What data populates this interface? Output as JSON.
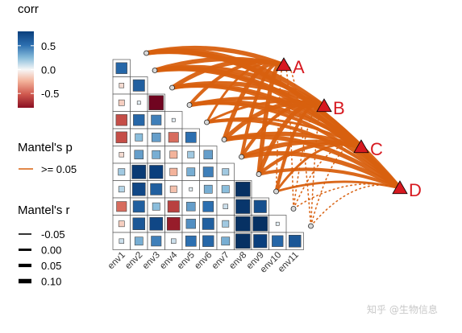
{
  "colors": {
    "link": "#d8600f",
    "target_marker": "#d71920",
    "corr_negative": "#8b0f22",
    "corr_positive": "#0a3f7d",
    "corr_neutral": "#f7f7f7",
    "grid": "#555555"
  },
  "legends": {
    "corr": {
      "title": "corr",
      "ticks": [
        {
          "value": 0.5,
          "label": "0.5"
        },
        {
          "value": 0.0,
          "label": "0.0"
        },
        {
          "value": -0.5,
          "label": "-0.5"
        }
      ],
      "range": [
        -0.8,
        0.8
      ]
    },
    "mantel_p": {
      "title": "Mantel's p",
      "items": [
        {
          "label": ">= 0.05"
        }
      ]
    },
    "mantel_r": {
      "title": "Mantel's r",
      "items": [
        {
          "label": "-0.05",
          "value": -0.05
        },
        {
          "label": "0.00",
          "value": 0.0
        },
        {
          "label": "0.05",
          "value": 0.05
        },
        {
          "label": "0.10",
          "value": 0.1
        }
      ]
    }
  },
  "chart_data": {
    "type": "heatmap",
    "variables": [
      "env1",
      "env2",
      "env3",
      "env4",
      "env5",
      "env6",
      "env7",
      "env8",
      "env9",
      "env10",
      "env11"
    ],
    "correlation_matrix_lower": [
      {
        "row": "env1",
        "values": [
          0.55
        ]
      },
      {
        "row": "env2",
        "values": [
          -0.1,
          0.6
        ]
      },
      {
        "row": "env3",
        "values": [
          -0.15,
          0.05,
          -0.95
        ]
      },
      {
        "row": "env4",
        "values": [
          -0.55,
          0.55,
          0.45,
          0.05
        ]
      },
      {
        "row": "env5",
        "values": [
          -0.55,
          0.25,
          0.35,
          -0.45,
          0.5
        ]
      },
      {
        "row": "env6",
        "values": [
          -0.1,
          0.35,
          0.3,
          -0.25,
          0.2,
          0.35
        ]
      },
      {
        "row": "env7",
        "values": [
          0.2,
          0.85,
          0.8,
          -0.25,
          0.3,
          0.45,
          0.2
        ]
      },
      {
        "row": "env8",
        "values": [
          0.15,
          0.75,
          0.6,
          -0.2,
          0.05,
          0.3,
          0.25,
          0.95
        ]
      },
      {
        "row": "env9",
        "values": [
          -0.45,
          0.6,
          0.25,
          -0.6,
          0.35,
          0.5,
          0.1,
          0.9,
          0.7
        ]
      },
      {
        "row": "env10",
        "values": [
          -0.15,
          0.65,
          0.75,
          -0.75,
          0.4,
          0.6,
          0.2,
          0.95,
          0.95,
          0.05
        ]
      },
      {
        "row": "env11",
        "values": [
          0.1,
          0.3,
          0.45,
          0.1,
          0.5,
          0.55,
          0.3,
          0.95,
          0.8,
          0.55,
          0.65
        ]
      }
    ],
    "targets": [
      "A",
      "B",
      "C",
      "D"
    ],
    "mantel_links": [
      {
        "from": "A",
        "to": "env1",
        "r": 0.1,
        "p": ">= 0.05"
      },
      {
        "from": "A",
        "to": "env2",
        "r": 0.1,
        "p": ">= 0.05"
      },
      {
        "from": "A",
        "to": "env3",
        "r": 0.1,
        "p": ">= 0.05"
      },
      {
        "from": "A",
        "to": "env4",
        "r": 0.05,
        "p": ">= 0.05"
      },
      {
        "from": "A",
        "to": "env5",
        "r": 0.0,
        "p": ">= 0.05"
      },
      {
        "from": "A",
        "to": "env6",
        "r": 0.1,
        "p": ">= 0.05"
      },
      {
        "from": "A",
        "to": "env7",
        "r": 0.05,
        "p": ">= 0.05"
      },
      {
        "from": "A",
        "to": "env8",
        "r": 0.1,
        "p": ">= 0.05"
      },
      {
        "from": "A",
        "to": "env9",
        "r": -0.05,
        "p": ">= 0.05"
      },
      {
        "from": "A",
        "to": "env10",
        "r": -0.05,
        "p": ">= 0.05"
      },
      {
        "from": "A",
        "to": "env11",
        "r": -0.05,
        "p": ">= 0.05"
      },
      {
        "from": "B",
        "to": "env1",
        "r": 0.1,
        "p": ">= 0.05"
      },
      {
        "from": "B",
        "to": "env2",
        "r": 0.1,
        "p": ">= 0.05"
      },
      {
        "from": "B",
        "to": "env3",
        "r": 0.1,
        "p": ">= 0.05"
      },
      {
        "from": "B",
        "to": "env4",
        "r": 0.05,
        "p": ">= 0.05"
      },
      {
        "from": "B",
        "to": "env5",
        "r": 0.0,
        "p": ">= 0.05"
      },
      {
        "from": "B",
        "to": "env6",
        "r": 0.1,
        "p": ">= 0.05"
      },
      {
        "from": "B",
        "to": "env7",
        "r": 0.05,
        "p": ">= 0.05"
      },
      {
        "from": "B",
        "to": "env8",
        "r": 0.1,
        "p": ">= 0.05"
      },
      {
        "from": "B",
        "to": "env9",
        "r": 0.05,
        "p": ">= 0.05"
      },
      {
        "from": "B",
        "to": "env10",
        "r": -0.05,
        "p": ">= 0.05"
      },
      {
        "from": "B",
        "to": "env11",
        "r": -0.05,
        "p": ">= 0.05"
      },
      {
        "from": "C",
        "to": "env1",
        "r": 0.1,
        "p": ">= 0.05"
      },
      {
        "from": "C",
        "to": "env2",
        "r": 0.1,
        "p": ">= 0.05"
      },
      {
        "from": "C",
        "to": "env3",
        "r": 0.05,
        "p": ">= 0.05"
      },
      {
        "from": "C",
        "to": "env4",
        "r": 0.1,
        "p": ">= 0.05"
      },
      {
        "from": "C",
        "to": "env5",
        "r": 0.0,
        "p": ">= 0.05"
      },
      {
        "from": "C",
        "to": "env6",
        "r": 0.1,
        "p": ">= 0.05"
      },
      {
        "from": "C",
        "to": "env7",
        "r": 0.1,
        "p": ">= 0.05"
      },
      {
        "from": "C",
        "to": "env8",
        "r": 0.05,
        "p": ">= 0.05"
      },
      {
        "from": "C",
        "to": "env9",
        "r": 0.0,
        "p": ">= 0.05"
      },
      {
        "from": "C",
        "to": "env10",
        "r": -0.05,
        "p": ">= 0.05"
      },
      {
        "from": "C",
        "to": "env11",
        "r": -0.05,
        "p": ">= 0.05"
      },
      {
        "from": "D",
        "to": "env1",
        "r": 0.1,
        "p": ">= 0.05"
      },
      {
        "from": "D",
        "to": "env2",
        "r": 0.1,
        "p": ">= 0.05"
      },
      {
        "from": "D",
        "to": "env3",
        "r": 0.05,
        "p": ">= 0.05"
      },
      {
        "from": "D",
        "to": "env4",
        "r": 0.05,
        "p": ">= 0.05"
      },
      {
        "from": "D",
        "to": "env5",
        "r": 0.05,
        "p": ">= 0.05"
      },
      {
        "from": "D",
        "to": "env6",
        "r": 0.1,
        "p": ">= 0.05"
      },
      {
        "from": "D",
        "to": "env7",
        "r": 0.1,
        "p": ">= 0.05"
      },
      {
        "from": "D",
        "to": "env8",
        "r": 0.05,
        "p": ">= 0.05"
      },
      {
        "from": "D",
        "to": "env9",
        "r": 0.0,
        "p": ">= 0.05"
      },
      {
        "from": "D",
        "to": "env10",
        "r": -0.05,
        "p": ">= 0.05"
      },
      {
        "from": "D",
        "to": "env11",
        "r": -0.05,
        "p": ">= 0.05"
      }
    ]
  },
  "watermark": {
    "text": "知乎 @生物信息"
  }
}
